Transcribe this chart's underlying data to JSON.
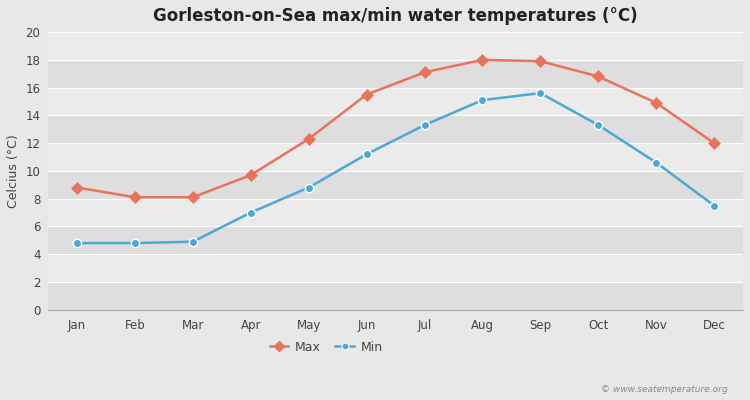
{
  "title": "Gorleston-on-Sea max/min water temperatures (°C)",
  "ylabel": "Celcius (°C)",
  "months": [
    "Jan",
    "Feb",
    "Mar",
    "Apr",
    "May",
    "Jun",
    "Jul",
    "Aug",
    "Sep",
    "Oct",
    "Nov",
    "Dec"
  ],
  "max_temps": [
    8.8,
    8.1,
    8.1,
    9.7,
    12.3,
    15.5,
    17.1,
    18.0,
    17.9,
    16.8,
    14.9,
    12.0
  ],
  "min_temps": [
    4.8,
    4.8,
    4.9,
    7.0,
    8.8,
    11.2,
    13.3,
    15.1,
    15.6,
    13.3,
    10.6,
    7.5
  ],
  "max_color": "#e8735a",
  "min_color": "#4ca8d4",
  "bg_color": "#e8e8e8",
  "band_light": "#ebebeb",
  "band_dark": "#dedede",
  "grid_color": "#ffffff",
  "ylim": [
    0,
    20
  ],
  "yticks": [
    0,
    2,
    4,
    6,
    8,
    10,
    12,
    14,
    16,
    18,
    20
  ],
  "watermark": "© www.seatemperature.org",
  "legend_max": "Max",
  "legend_min": "Min",
  "title_fontsize": 12,
  "label_fontsize": 9,
  "tick_fontsize": 8.5,
  "marker_size_max": 6,
  "marker_size_min": 6,
  "line_width": 1.8
}
